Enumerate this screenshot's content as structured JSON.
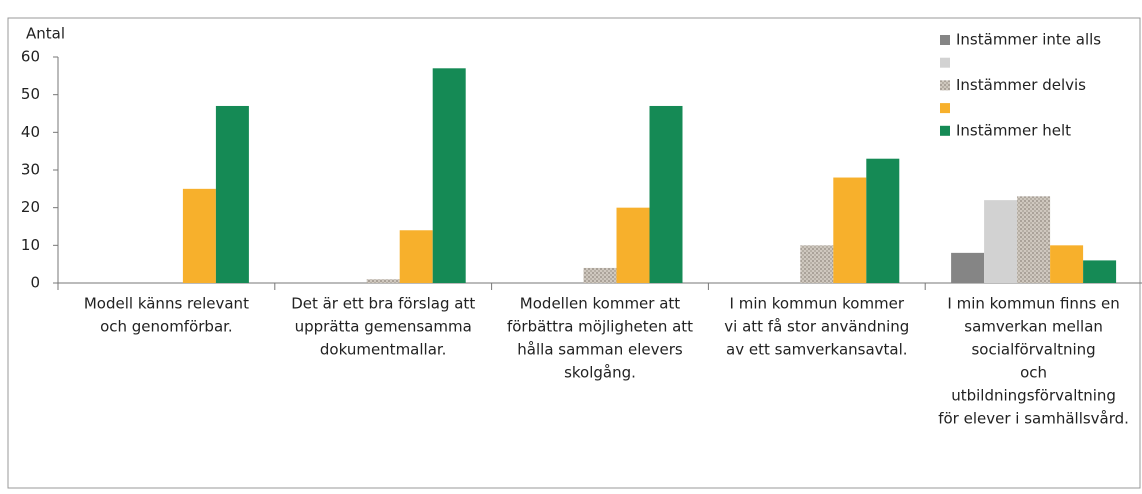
{
  "chart_data": {
    "type": "bar",
    "y_label": "Antal",
    "categories": [
      [
        "Modell känns relevant",
        "och genomförbar."
      ],
      [
        "Det är ett bra förslag att",
        "upprätta gemensamma",
        "dokumentmallar."
      ],
      [
        "Modellen kommer att",
        "förbättra möjligheten att",
        "hålla samman elevers",
        "skolgång."
      ],
      [
        "I min kommun kommer",
        "vi att få stor användning",
        "av ett samverkansavtal."
      ],
      [
        "I min kommun finns en",
        "samverkan mellan",
        "socialförvaltning",
        "och",
        "utbildningsförvaltning",
        "för elever i samhällsvård."
      ]
    ],
    "series": [
      {
        "name": "Instämmer inte alls",
        "color": "#858585",
        "values": [
          0,
          0,
          0,
          0,
          8
        ]
      },
      {
        "name": null,
        "color": "#d2d2d2",
        "values": [
          0,
          0,
          0,
          0,
          22
        ]
      },
      {
        "name": "Instämmer delvis",
        "color": "#c4bcb2",
        "values": [
          0,
          1,
          4,
          10,
          23
        ]
      },
      {
        "name": null,
        "color": "#f7b02c",
        "values": [
          25,
          14,
          20,
          28,
          10
        ]
      },
      {
        "name": "Instämmer helt",
        "color": "#158a55",
        "values": [
          47,
          57,
          47,
          33,
          6
        ]
      }
    ],
    "ylim": [
      0,
      60
    ],
    "yticks": [
      0,
      10,
      20,
      30,
      40,
      50,
      60
    ],
    "grid": false,
    "legend": "top-right"
  }
}
